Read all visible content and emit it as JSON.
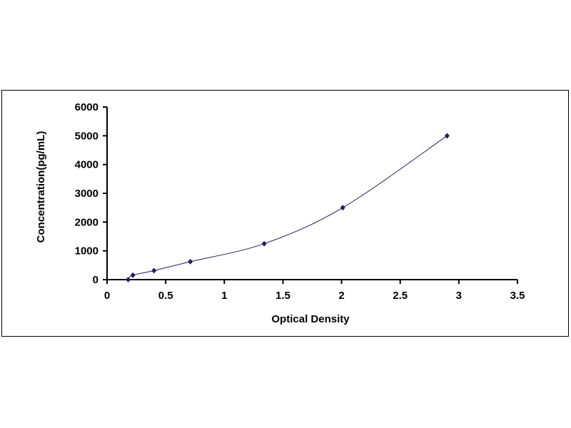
{
  "chart_data": {
    "type": "scatter",
    "title": "",
    "xlabel": "Optical Density",
    "ylabel": "Concentration(pg/mL)",
    "xlim": [
      0,
      3.5
    ],
    "ylim": [
      0,
      6000
    ],
    "xticks": [
      "0",
      "0.5",
      "1",
      "1.5",
      "2",
      "2.5",
      "3",
      "3.5"
    ],
    "yticks": [
      "0",
      "1000",
      "2000",
      "3000",
      "4000",
      "5000",
      "6000"
    ],
    "grid": false,
    "legend": "none",
    "smooth_line": true,
    "marker": "diamond",
    "color": "#1f1f5c",
    "series": [
      {
        "x": [
          0.18,
          0.22,
          0.4,
          0.71,
          1.34,
          2.01,
          2.9
        ],
        "y": [
          0,
          156,
          312,
          625,
          1250,
          2500,
          5000
        ]
      }
    ]
  }
}
